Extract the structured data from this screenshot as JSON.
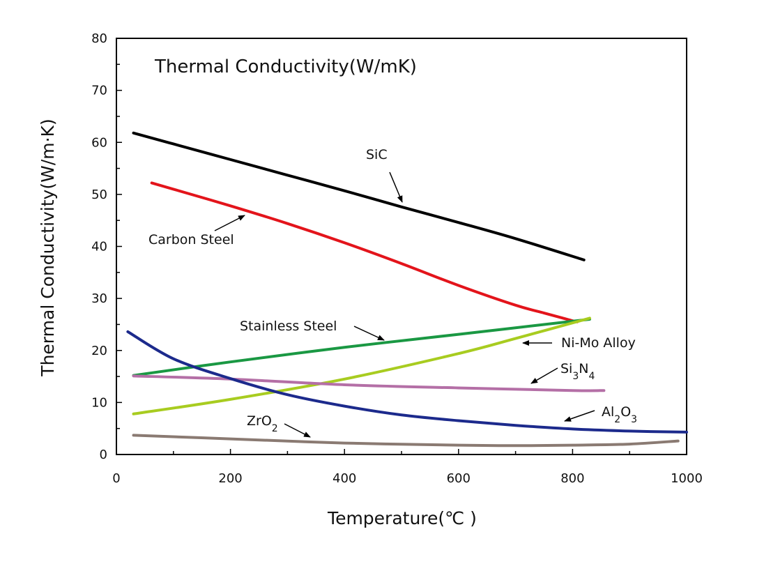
{
  "chart_data": {
    "type": "line",
    "title": "Thermal Conductivity(W/mK)",
    "xlabel": "Temperature(℃ )",
    "ylabel": "Thermal Conductivity(W/m·K)",
    "xlim": [
      0,
      1000
    ],
    "ylim": [
      0,
      80
    ],
    "x_ticks": [
      0,
      200,
      400,
      600,
      800,
      1000
    ],
    "y_ticks": [
      0,
      10,
      20,
      30,
      40,
      50,
      60,
      70,
      80
    ],
    "grid": false,
    "legend": "none (series labelled with arrow annotations)",
    "series": [
      {
        "name": "SiC",
        "color": "#000000",
        "x": [
          30,
          100,
          200,
          300,
          400,
          500,
          600,
          700,
          820
        ],
        "y": [
          61.8,
          59.7,
          56.7,
          53.7,
          50.7,
          47.6,
          44.6,
          41.5,
          37.4
        ]
      },
      {
        "name": "Carbon Steel",
        "color": "#e3141b",
        "x": [
          62,
          100,
          200,
          300,
          400,
          500,
          600,
          700,
          750,
          780,
          800,
          808
        ],
        "y": [
          52.2,
          51.0,
          47.8,
          44.4,
          40.7,
          36.7,
          32.5,
          28.7,
          27.2,
          26.3,
          25.7,
          25.5
        ]
      },
      {
        "name": "Stainless Steel",
        "color": "#1a9843",
        "x": [
          30,
          200,
          400,
          600,
          830
        ],
        "y": [
          15.2,
          17.8,
          20.6,
          23.1,
          26.0
        ]
      },
      {
        "name": "Ni-Mo Alloy",
        "color": "#a8cc20",
        "x": [
          30,
          200,
          400,
          600,
          700,
          830
        ],
        "y": [
          7.8,
          10.6,
          14.5,
          19.4,
          22.3,
          26.2
        ]
      },
      {
        "name": "Si₃N₄",
        "color": "#b46fa6",
        "x": [
          30,
          200,
          400,
          600,
          800,
          855
        ],
        "y": [
          15.1,
          14.5,
          13.4,
          12.8,
          12.3,
          12.3
        ]
      },
      {
        "name": "Al₂O₃",
        "color": "#1c2a8c",
        "x": [
          20,
          100,
          200,
          300,
          400,
          500,
          600,
          700,
          800,
          900,
          1000
        ],
        "y": [
          23.6,
          18.4,
          14.6,
          11.5,
          9.3,
          7.6,
          6.5,
          5.6,
          4.9,
          4.5,
          4.3
        ]
      },
      {
        "name": "ZrO₂",
        "color": "#8a7a72",
        "x": [
          30,
          200,
          400,
          600,
          700,
          800,
          900,
          985
        ],
        "y": [
          3.7,
          3.0,
          2.2,
          1.8,
          1.7,
          1.8,
          2.0,
          2.6
        ]
      }
    ],
    "annotations": {
      "sic": "SiC",
      "carbon_steel": "Carbon Steel",
      "stainless_steel": "Stainless Steel",
      "ni_mo": "Ni-Mo Alloy",
      "si3n4": {
        "base1": "Si",
        "sub1": "3",
        "base2": "N",
        "sub2": "4"
      },
      "al2o3": {
        "base1": "Al",
        "sub1": "2",
        "base2": "O",
        "sub2": "3"
      },
      "zro2": {
        "base1": "ZrO",
        "sub1": "2"
      }
    }
  }
}
